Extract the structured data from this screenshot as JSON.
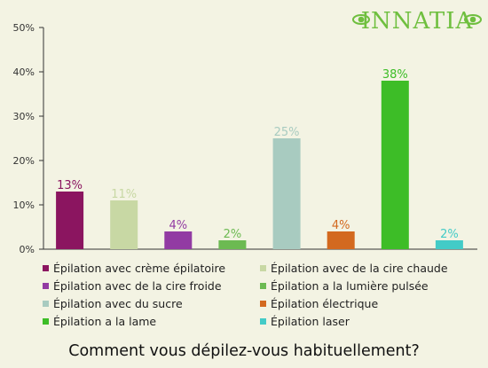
{
  "brand": {
    "name": "Innatia",
    "color": "#6fbf3f"
  },
  "question": "Comment vous dépilez-vous habituellement?",
  "chart_data": {
    "type": "bar",
    "ylim": [
      0,
      50
    ],
    "yticks": [
      "0%",
      "10%",
      "20%",
      "30%",
      "40%",
      "50%"
    ],
    "grid": false,
    "legend_position": "bottom",
    "categories": [
      "Épilation avec crème épilatoire",
      "Épilation avec de la cire chaude",
      "Épilation avec de la cire froide",
      "Épilation a la lumière pulsée",
      "Épilation avec du sucre",
      "Épilation électrique",
      "Épilation a la lame",
      "Épilation laser"
    ],
    "values": [
      13,
      11,
      4,
      2,
      25,
      4,
      38,
      2
    ],
    "labels": [
      "13%",
      "11%",
      "4%",
      "2%",
      "25%",
      "4%",
      "38%",
      "2%"
    ],
    "colors": [
      "#8b1560",
      "#c8d8a4",
      "#923ba3",
      "#6cba52",
      "#a8cbc0",
      "#d3691f",
      "#3dbd27",
      "#43cbc7"
    ]
  }
}
